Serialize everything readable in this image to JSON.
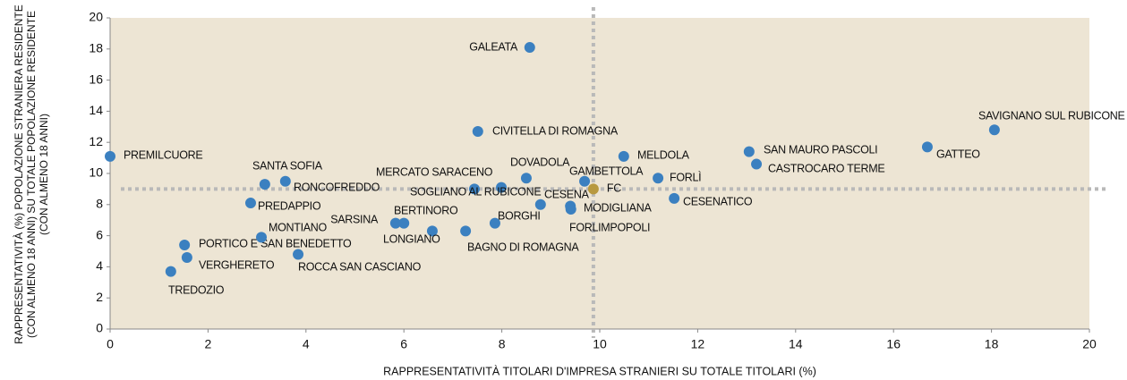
{
  "chart_data": {
    "type": "scatter",
    "xlabel": "RAPPRESENTATIVITÀ TITOLARI D'IMPRESA STRANIERI SU TOTALE TITOLARI (%)",
    "ylabel": [
      "RAPPRESENTATIVITÀ (%) POPOLAZIONE STRANIERA RESIDENTE",
      "(CON ALMENO 18 ANNI) SU TOTALE POPOLAZIONE RESIDENTE",
      "(CON ALMENO 18 ANNI)"
    ],
    "xlim": [
      0,
      20
    ],
    "xticks": [
      0,
      2,
      4,
      6,
      8,
      10,
      12,
      14,
      16,
      18,
      20
    ],
    "ylim": [
      0,
      20
    ],
    "yticks": [
      0,
      2,
      4,
      6,
      8,
      10,
      12,
      14,
      16,
      18,
      20
    ],
    "color": "#3b80c0",
    "point_labels": [
      "PREMILCUORE",
      "TREDOZIO",
      "PORTICO E SAN BENEDETTO",
      "VERGHERETO",
      "PREDAPPIO",
      "MONTIANO",
      "SANTA SOFIA",
      "RONCOFREDDO",
      "ROCCA SAN CASCIANO",
      "SARSINA",
      "BERTINORO",
      "LONGIANO",
      "BAGNO DI ROMAGNA",
      "MERCATO SARACENO",
      "CIVITELLA DI ROMAGNA",
      "BORGHI",
      "SOGLIANO AL RUBICONE",
      "DOVADOLA",
      "GALEATA",
      "CESENA",
      "MODIGLIANA",
      "FORLIMPOPOLI",
      "GAMBETTOLA",
      "MELDOLA",
      "FORLÌ",
      "CESENATICO",
      "SAN MAURO PASCOLI",
      "CASTROCARO TERME",
      "GATTEO",
      "SAVIGNANO SUL RUBICONE"
    ],
    "x": [
      0,
      1.24,
      1.52,
      1.57,
      2.87,
      3.09,
      3.16,
      3.58,
      3.84,
      5.83,
      6.0,
      6.58,
      7.26,
      7.44,
      7.51,
      7.86,
      7.99,
      8.5,
      8.57,
      8.79,
      9.4,
      9.41,
      9.69,
      10.49,
      11.19,
      11.52,
      13.05,
      13.2,
      16.69,
      18.06
    ],
    "values": [
      11.1,
      3.7,
      5.4,
      4.6,
      8.1,
      5.9,
      9.3,
      9.5,
      4.8,
      6.8,
      6.8,
      6.3,
      6.3,
      9.0,
      12.7,
      6.8,
      9.1,
      9.7,
      18.1,
      8.0,
      7.9,
      7.7,
      9.5,
      11.1,
      9.7,
      8.4,
      11.4,
      10.6,
      11.7,
      12.8
    ],
    "reference": {
      "label": "FC",
      "x": 9.87,
      "y": 9.0,
      "color": "#b8993f"
    },
    "background": "#ede5d4"
  }
}
